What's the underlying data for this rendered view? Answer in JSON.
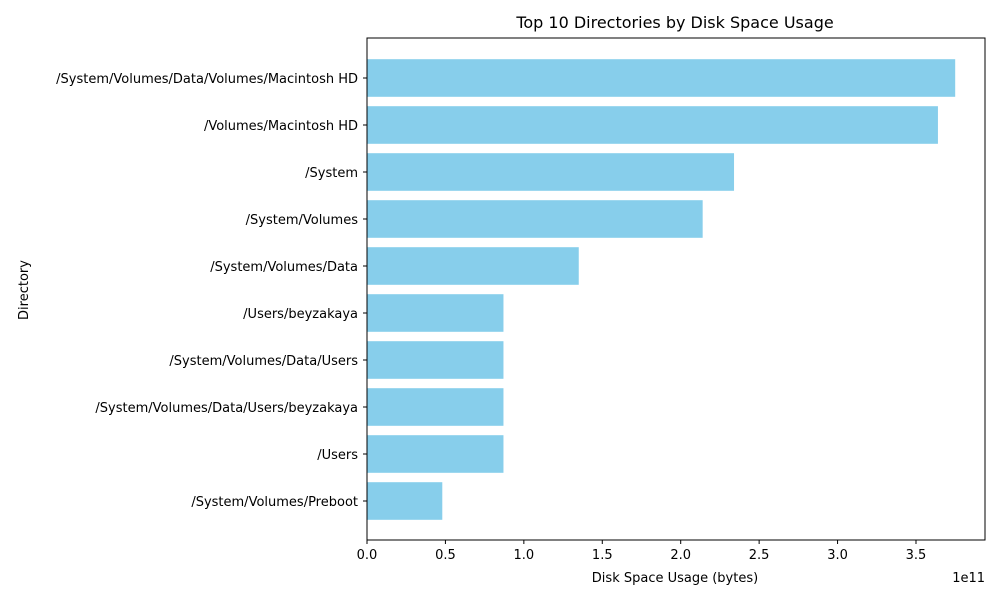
{
  "chart_data": {
    "type": "bar",
    "orientation": "horizontal",
    "title": "Top 10 Directories by Disk Space Usage",
    "xlabel": "Disk Space Usage (bytes)",
    "ylabel": "Directory",
    "offset_label": "1e11",
    "bar_color": "#87CEEB",
    "xlim": [
      0,
      3.94
    ],
    "xticks": [
      "0.0",
      "0.5",
      "1.0",
      "1.5",
      "2.0",
      "2.5",
      "3.0",
      "3.5"
    ],
    "categories": [
      "/System/Volumes/Data/Volumes/Macintosh HD",
      "/Volumes/Macintosh HD",
      "/System",
      "/System/Volumes",
      "/System/Volumes/Data",
      "/Users/beyzakaya",
      "/System/Volumes/Data/Users",
      "/System/Volumes/Data/Users/beyzakaya",
      "/Users",
      "/System/Volumes/Preboot"
    ],
    "values": [
      3.75,
      3.64,
      2.34,
      2.14,
      1.35,
      0.87,
      0.87,
      0.87,
      0.87,
      0.48
    ],
    "grid": false,
    "legend": "none"
  }
}
